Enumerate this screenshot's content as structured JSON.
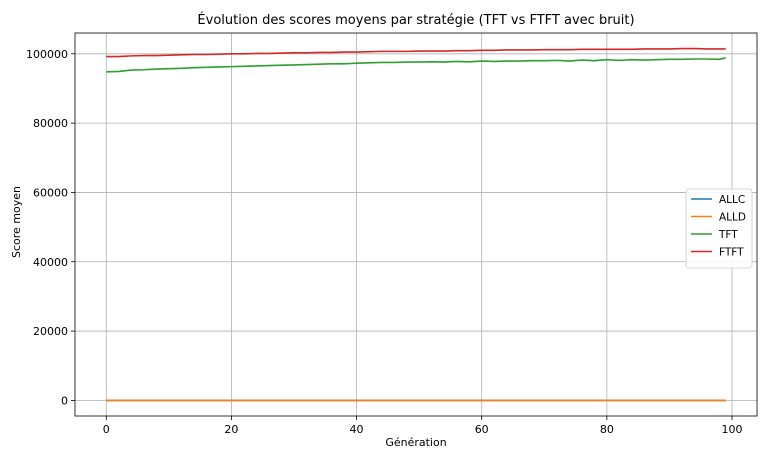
{
  "chart_data": {
    "type": "line",
    "title": "Évolution des scores moyens par stratégie (TFT vs FTFT avec bruit)",
    "xlabel": "Génération",
    "ylabel": "Score moyen",
    "xlim": [
      -5,
      104
    ],
    "ylim": [
      -4500,
      106000
    ],
    "x_ticks": [
      0,
      20,
      40,
      60,
      80,
      100
    ],
    "y_ticks": [
      0,
      20000,
      40000,
      60000,
      80000,
      100000
    ],
    "grid": true,
    "legend_position": "right",
    "x": [
      0,
      99
    ],
    "series": [
      {
        "name": "ALLC",
        "color": "#1f77b4",
        "points": [
          [
            0,
            0
          ],
          [
            99,
            0
          ]
        ]
      },
      {
        "name": "ALLD",
        "color": "#ff7f0e",
        "points": [
          [
            0,
            0
          ],
          [
            99,
            0
          ]
        ]
      },
      {
        "name": "TFT",
        "color": "#2ca02c",
        "points": [
          [
            0,
            94800
          ],
          [
            2,
            94900
          ],
          [
            4,
            95300
          ],
          [
            6,
            95400
          ],
          [
            8,
            95600
          ],
          [
            10,
            95700
          ],
          [
            12,
            95800
          ],
          [
            14,
            96000
          ],
          [
            16,
            96100
          ],
          [
            18,
            96200
          ],
          [
            20,
            96300
          ],
          [
            22,
            96400
          ],
          [
            24,
            96500
          ],
          [
            26,
            96600
          ],
          [
            28,
            96700
          ],
          [
            30,
            96800
          ],
          [
            32,
            96900
          ],
          [
            34,
            97000
          ],
          [
            36,
            97100
          ],
          [
            38,
            97100
          ],
          [
            40,
            97300
          ],
          [
            42,
            97400
          ],
          [
            44,
            97500
          ],
          [
            46,
            97500
          ],
          [
            48,
            97600
          ],
          [
            50,
            97600
          ],
          [
            52,
            97700
          ],
          [
            54,
            97600
          ],
          [
            56,
            97800
          ],
          [
            58,
            97700
          ],
          [
            60,
            97900
          ],
          [
            62,
            97800
          ],
          [
            64,
            97900
          ],
          [
            66,
            97900
          ],
          [
            68,
            98000
          ],
          [
            70,
            98000
          ],
          [
            72,
            98100
          ],
          [
            74,
            97900
          ],
          [
            76,
            98200
          ],
          [
            78,
            98000
          ],
          [
            80,
            98300
          ],
          [
            82,
            98100
          ],
          [
            84,
            98300
          ],
          [
            86,
            98200
          ],
          [
            88,
            98300
          ],
          [
            90,
            98400
          ],
          [
            92,
            98400
          ],
          [
            94,
            98500
          ],
          [
            96,
            98500
          ],
          [
            98,
            98400
          ],
          [
            99,
            98800
          ]
        ]
      },
      {
        "name": "FTFT",
        "color": "#d62728",
        "points": [
          [
            0,
            99200
          ],
          [
            2,
            99200
          ],
          [
            4,
            99400
          ],
          [
            6,
            99500
          ],
          [
            8,
            99500
          ],
          [
            10,
            99600
          ],
          [
            12,
            99700
          ],
          [
            14,
            99800
          ],
          [
            16,
            99800
          ],
          [
            18,
            99900
          ],
          [
            20,
            100000
          ],
          [
            22,
            100000
          ],
          [
            24,
            100100
          ],
          [
            26,
            100100
          ],
          [
            28,
            100200
          ],
          [
            30,
            100300
          ],
          [
            32,
            100300
          ],
          [
            34,
            100400
          ],
          [
            36,
            100400
          ],
          [
            38,
            100500
          ],
          [
            40,
            100500
          ],
          [
            42,
            100600
          ],
          [
            44,
            100700
          ],
          [
            46,
            100700
          ],
          [
            48,
            100700
          ],
          [
            50,
            100800
          ],
          [
            52,
            100800
          ],
          [
            54,
            100800
          ],
          [
            56,
            100900
          ],
          [
            58,
            100900
          ],
          [
            60,
            101000
          ],
          [
            62,
            101000
          ],
          [
            64,
            101100
          ],
          [
            66,
            101100
          ],
          [
            68,
            101100
          ],
          [
            70,
            101200
          ],
          [
            72,
            101200
          ],
          [
            74,
            101200
          ],
          [
            76,
            101300
          ],
          [
            78,
            101300
          ],
          [
            80,
            101300
          ],
          [
            82,
            101300
          ],
          [
            84,
            101300
          ],
          [
            86,
            101400
          ],
          [
            88,
            101400
          ],
          [
            90,
            101400
          ],
          [
            92,
            101500
          ],
          [
            94,
            101500
          ],
          [
            96,
            101400
          ],
          [
            98,
            101400
          ],
          [
            99,
            101400
          ]
        ]
      }
    ]
  }
}
